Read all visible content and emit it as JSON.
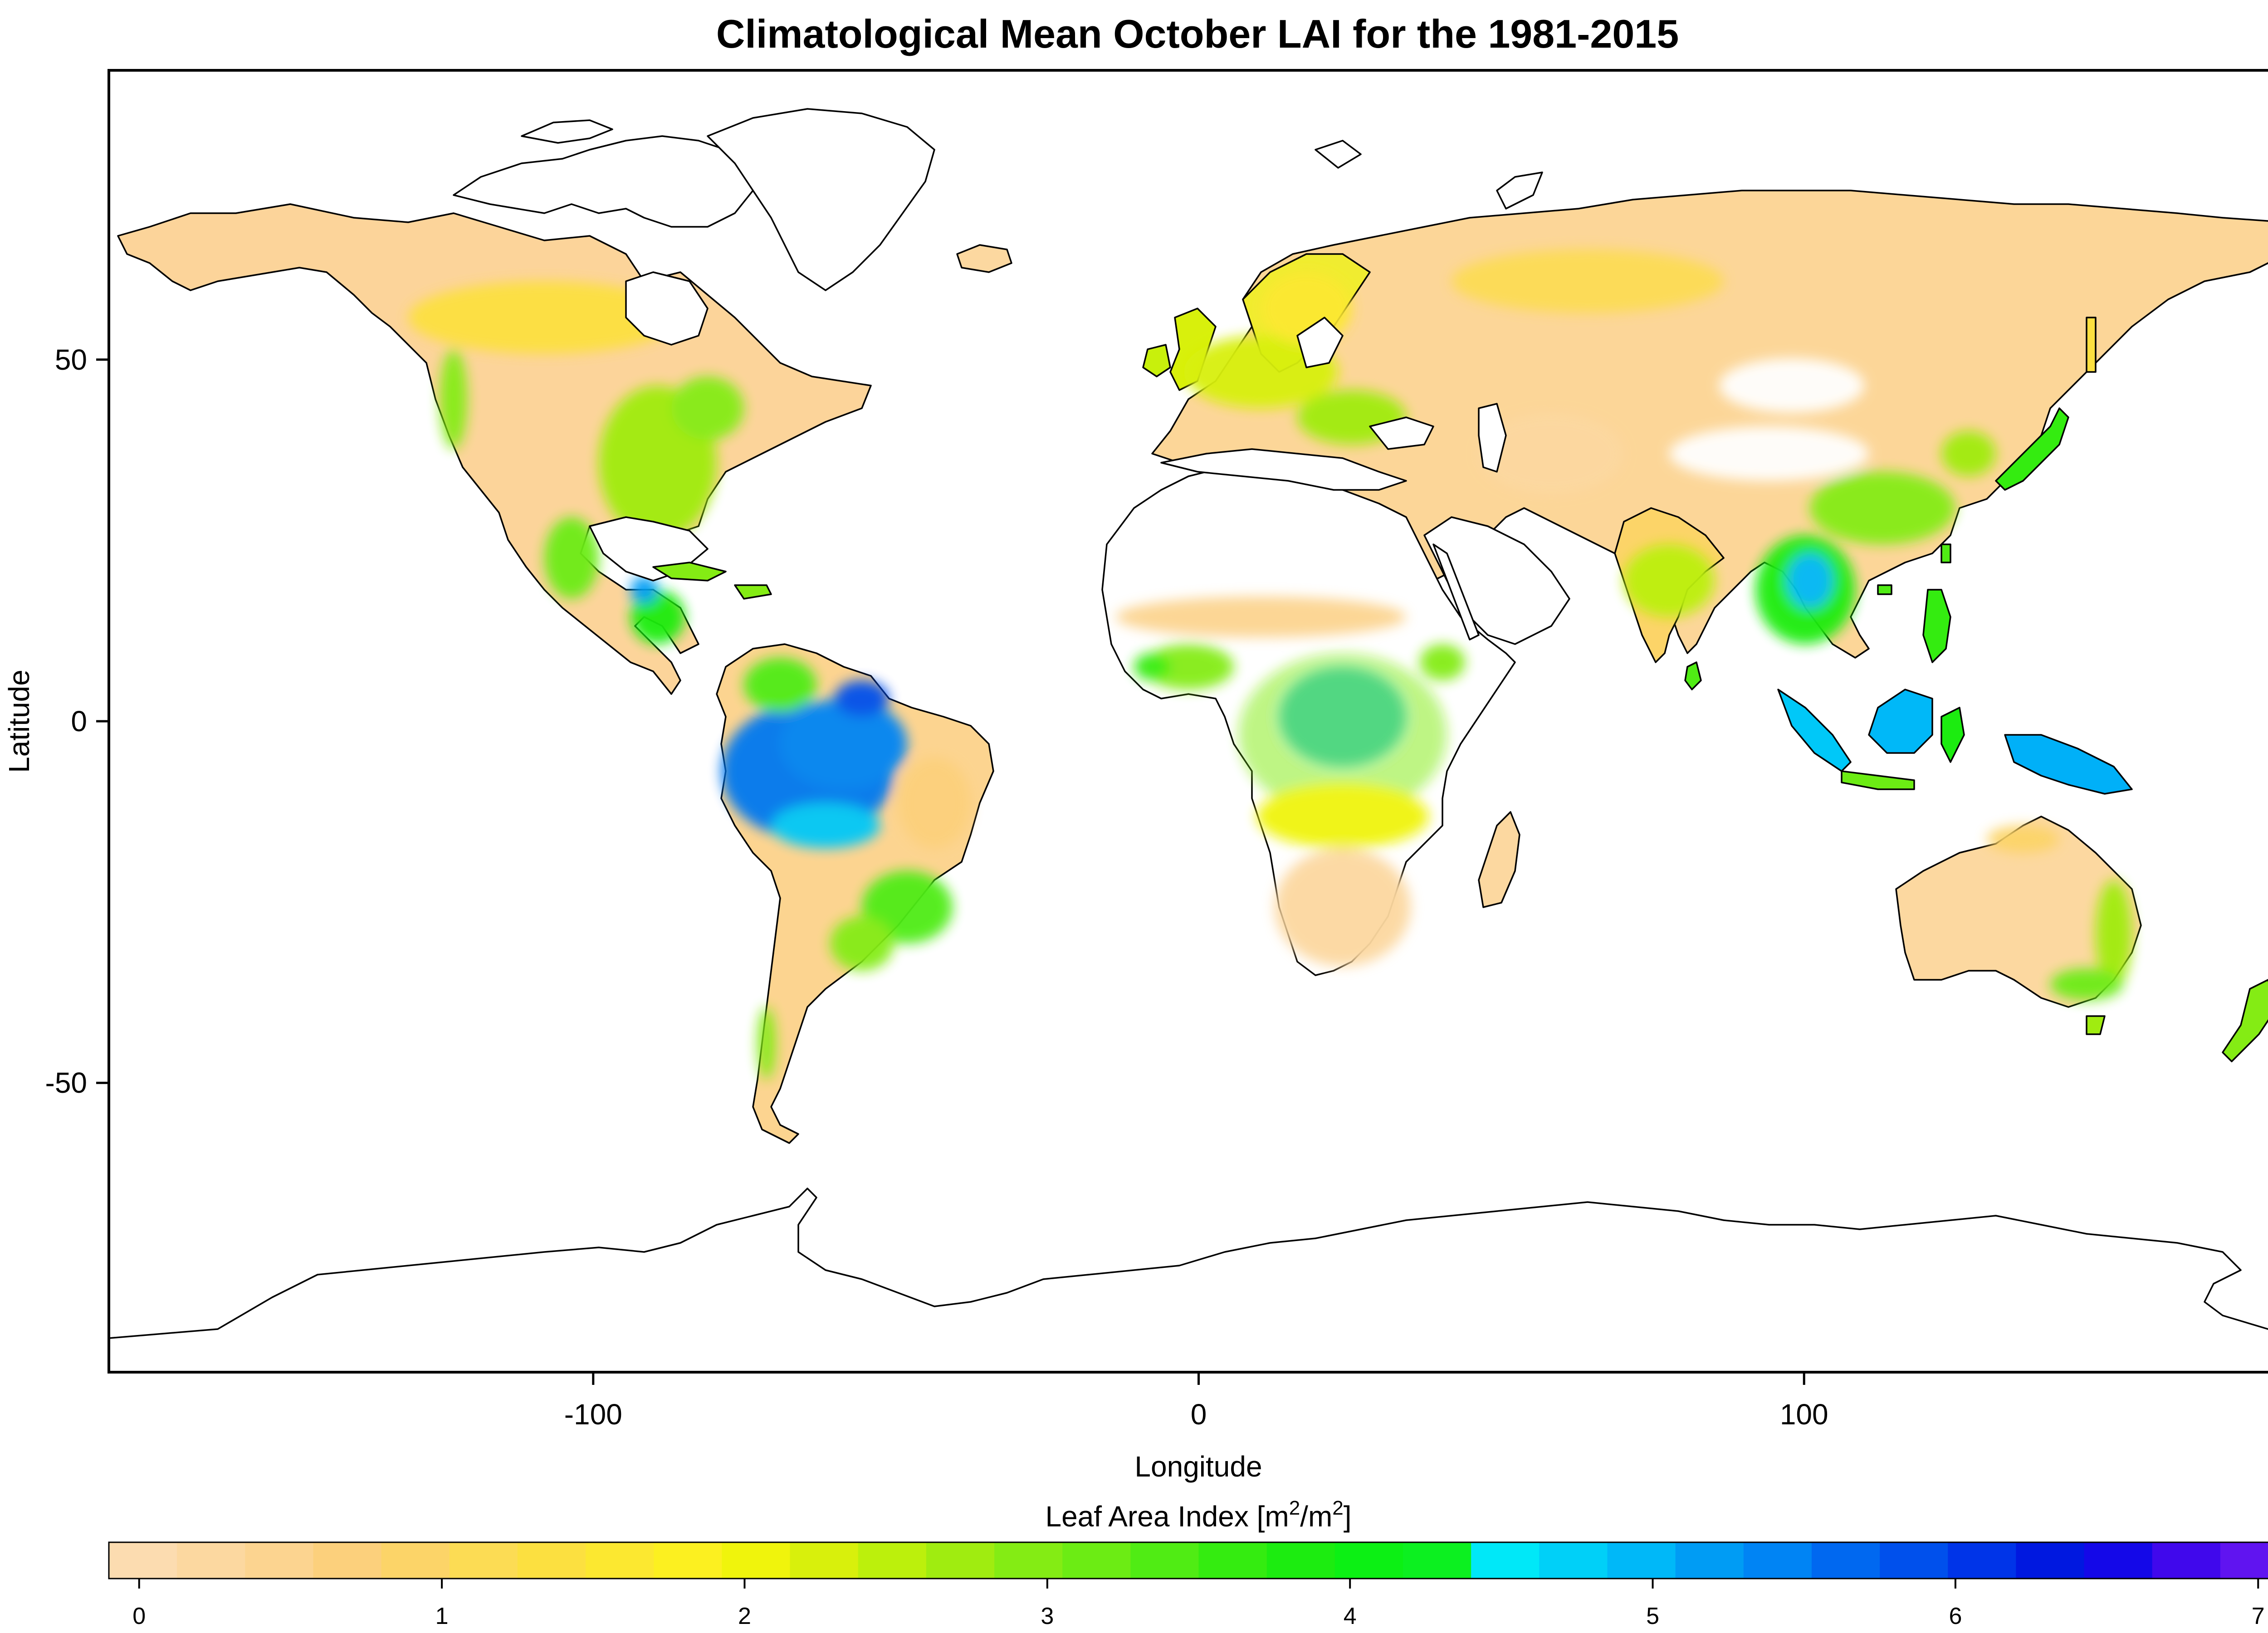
{
  "title": "Climatological Mean October LAI for the 1981-2015",
  "x_axis": {
    "label": "Longitude",
    "ticks": [
      {
        "value": -100,
        "label": "-100"
      },
      {
        "value": 0,
        "label": "0"
      },
      {
        "value": 100,
        "label": "100"
      }
    ],
    "range": [
      -180,
      180
    ]
  },
  "y_axis": {
    "label": "Latitude",
    "ticks": [
      {
        "value": 50,
        "label": "50"
      },
      {
        "value": 0,
        "label": "0"
      },
      {
        "value": -50,
        "label": "-50"
      }
    ],
    "range": [
      -90,
      90
    ]
  },
  "colorbar": {
    "title_main": "Leaf Area Index [m",
    "title_sup1": "2",
    "title_mid": "/m",
    "title_sup2": "2",
    "title_end": "]",
    "range": [
      -0.1,
      7.1
    ],
    "tick_values": [
      0,
      1,
      2,
      3,
      4,
      5,
      6,
      7
    ],
    "tick_labels": [
      "0",
      "1",
      "2",
      "3",
      "4",
      "5",
      "6",
      "7"
    ],
    "colors": [
      "#fcdcb0",
      "#fcd8a0",
      "#fcd490",
      "#fcd07c",
      "#fcd468",
      "#fcdc54",
      "#fce040",
      "#fce830",
      "#fcf020",
      "#f0f40c",
      "#d8f00c",
      "#bcf00c",
      "#a0ec10",
      "#84ec14",
      "#6cec14",
      "#50ec14",
      "#34ec10",
      "#1cec10",
      "#0cf014",
      "#0cf020",
      "#00e8f8",
      "#00d0f8",
      "#00b8f8",
      "#009cf4",
      "#0084f4",
      "#0068f0",
      "#0050ec",
      "#0034e8",
      "#0018e0",
      "#1408e8",
      "#4008ec",
      "#6014f0"
    ]
  },
  "map_data": {
    "variable": "Leaf Area Index",
    "month": "October",
    "period": "1981-2015",
    "projection": "longitude-latitude",
    "background": "#ffffff",
    "regions": [
      {
        "name": "North America boreal",
        "lai": 0.7,
        "color": "#fcd68c"
      },
      {
        "name": "Eastern United States",
        "lai": 2.5,
        "color": "#bcf00c"
      },
      {
        "name": "Central America",
        "lai": 3.5,
        "color": "#50ec14"
      },
      {
        "name": "Amazon basin",
        "lai": 5.8,
        "color": "#0078f0"
      },
      {
        "name": "Brazilian savanna",
        "lai": 1.0,
        "color": "#fcd468"
      },
      {
        "name": "Southern South America",
        "lai": 0.4,
        "color": "#fcd8a0"
      },
      {
        "name": "Sahara and Arabia",
        "lai": null,
        "color": "#ffffff"
      },
      {
        "name": "Sahel",
        "lai": 0.5,
        "color": "#fcd8a0"
      },
      {
        "name": "Congo basin",
        "lai": 5.0,
        "color": "#00b8f8"
      },
      {
        "name": "Southern Africa",
        "lai": 0.5,
        "color": "#fcd490"
      },
      {
        "name": "Europe",
        "lai": 1.8,
        "color": "#e8f00c"
      },
      {
        "name": "Siberia",
        "lai": 0.5,
        "color": "#fcd8a0"
      },
      {
        "name": "Southeast Asia",
        "lai": 4.0,
        "color": "#1cec10"
      },
      {
        "name": "Indonesia",
        "lai": 5.0,
        "color": "#00c8f8"
      },
      {
        "name": "Australia interior",
        "lai": 0.3,
        "color": "#fcd8a0"
      },
      {
        "name": "Greenland",
        "lai": null,
        "color": "#ffffff"
      },
      {
        "name": "Antarctica",
        "lai": null,
        "color": "#ffffff"
      }
    ]
  }
}
